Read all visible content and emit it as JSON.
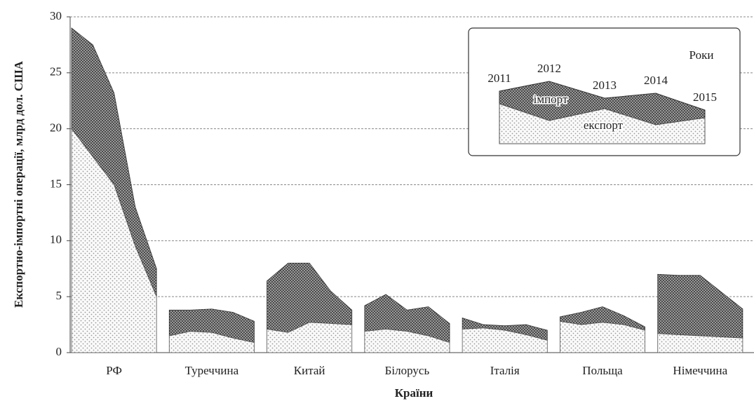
{
  "chart_data": {
    "type": "stacked_area_groups",
    "ylabel": "Експортно-імпортні операції, млрд дол. США",
    "xlabel": "Країни",
    "categories": [
      "РФ",
      "Туреччина",
      "Китай",
      "Білорусь",
      "Італія",
      "Польща",
      "Німеччина"
    ],
    "years": [
      "2011",
      "2012",
      "2013",
      "2014",
      "2015"
    ],
    "legend_title": "Роки",
    "series": [
      {
        "name": "експорт",
        "color": "#9a9a9a",
        "values": [
          [
            20,
            17.5,
            15,
            9.5,
            5
          ],
          [
            1.5,
            1.9,
            1.8,
            1.3,
            0.9
          ],
          [
            2.1,
            1.8,
            2.7,
            2.6,
            2.5
          ],
          [
            1.9,
            2.1,
            1.9,
            1.5,
            0.9
          ],
          [
            2.1,
            2.2,
            2.0,
            1.6,
            1.1
          ],
          [
            2.8,
            2.5,
            2.7,
            2.5,
            2.0
          ],
          [
            1.7,
            1.6,
            1.5,
            1.4,
            1.3
          ]
        ]
      },
      {
        "name": "імпорт",
        "color": "#3a3a3a",
        "values": [
          [
            9,
            10,
            8.2,
            3.5,
            2.5
          ],
          [
            2.3,
            1.9,
            2.1,
            2.3,
            1.9
          ],
          [
            4.3,
            6.2,
            5.3,
            2.9,
            1.3
          ],
          [
            2.3,
            3.1,
            1.9,
            2.6,
            1.7
          ],
          [
            1.0,
            0.3,
            0.4,
            0.9,
            0.9
          ],
          [
            0.4,
            1.1,
            1.4,
            0.8,
            0.3
          ],
          [
            5.3,
            5.3,
            5.4,
            4.0,
            2.6
          ]
        ]
      }
    ],
    "ylim": [
      0,
      30
    ],
    "yticks": [
      0,
      5,
      10,
      15,
      20,
      25,
      30
    ],
    "grid": true
  }
}
